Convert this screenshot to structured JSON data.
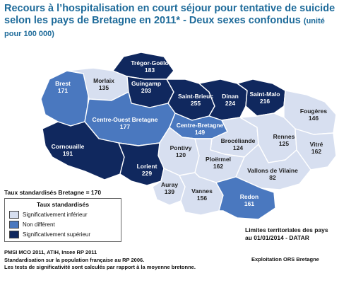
{
  "title": {
    "main": "Recours à l’hospitalisation en court séjour pour tentative de suicide selon les pays de Bretagne en 2011* - Deux sexes confondus",
    "unit": "(unité pour 100 000)"
  },
  "colors": {
    "inferieur": "#d7dff0",
    "non_different": "#4a78bf",
    "superieur": "#10285e",
    "title": "#1e6b9a"
  },
  "regions": {
    "tregor_goelo": {
      "name": "Trégor-Goëlo",
      "value": "183",
      "category": "superieur"
    },
    "brest": {
      "name": "Brest",
      "value": "171",
      "category": "non_different"
    },
    "morlaix": {
      "name": "Morlaix",
      "value": "135",
      "category": "inferieur"
    },
    "guingamp": {
      "name": "Guingamp",
      "value": "203",
      "category": "superieur"
    },
    "saint_brieuc": {
      "name": "Saint-Brieuc",
      "value": "255",
      "category": "superieur"
    },
    "dinan": {
      "name": "Dinan",
      "value": "224",
      "category": "superieur"
    },
    "saint_malo": {
      "name": "Saint-Malo",
      "value": "216",
      "category": "superieur"
    },
    "fougeres": {
      "name": "Fougères",
      "value": "146",
      "category": "inferieur"
    },
    "centre_ouest": {
      "name": "Centre-Ouest Bretagne",
      "value": "177",
      "category": "non_different"
    },
    "centre_bretagne": {
      "name": "Centre-Bretagne",
      "value": "149",
      "category": "non_different"
    },
    "cornouaille": {
      "name": "Cornouaille",
      "value": "191",
      "category": "superieur"
    },
    "pontivy": {
      "name": "Pontivy",
      "value": "120",
      "category": "inferieur"
    },
    "broceliande": {
      "name": "Brocéliande",
      "value": "124",
      "category": "inferieur"
    },
    "rennes": {
      "name": "Rennes",
      "value": "125",
      "category": "inferieur"
    },
    "vitre": {
      "name": "Vitré",
      "value": "162",
      "category": "inferieur"
    },
    "lorient": {
      "name": "Lorient",
      "value": "229",
      "category": "superieur"
    },
    "ploermel": {
      "name": "Ploërmel",
      "value": "162",
      "category": "inferieur"
    },
    "vallons": {
      "name": "Vallons de Vilaine",
      "value": "82",
      "category": "inferieur"
    },
    "auray": {
      "name": "Auray",
      "value": "139",
      "category": "inferieur"
    },
    "vannes": {
      "name": "Vannes",
      "value": "156",
      "category": "inferieur"
    },
    "redon": {
      "name": "Redon",
      "value": "161",
      "category": "non_different"
    }
  },
  "standardized_rate": "Taux standardisés Bretagne = 170",
  "legend": {
    "title": "Taux standardisés",
    "items": [
      {
        "label": "Significativement inférieur",
        "color": "#d7dff0"
      },
      {
        "label": "Non différent",
        "color": "#4a78bf"
      },
      {
        "label": "Significativement supérieur",
        "color": "#10285e"
      }
    ]
  },
  "limits": {
    "line1": "Limites territoriales des pays",
    "line2": "au 01/01/2014 - DATAR"
  },
  "sources": {
    "line1": "PMSI MCO 2011, ATIH, Insee RP 2011",
    "line2": "Standardisation sur la population française au RP 2006.",
    "line3": "Les tests de significativité sont calculés par rapport à la moyenne bretonne."
  },
  "credit": "Exploitation ORS Bretagne"
}
